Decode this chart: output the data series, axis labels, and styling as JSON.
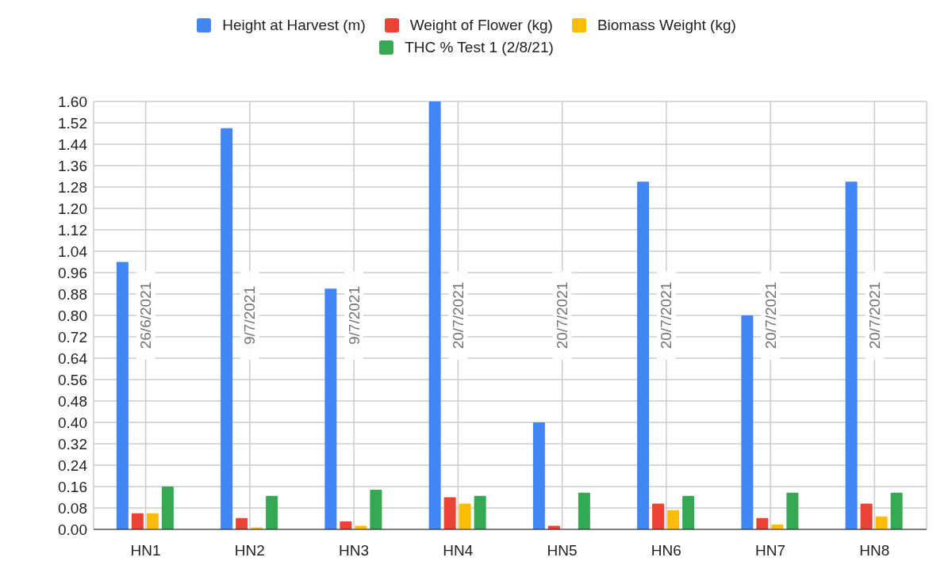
{
  "chart_data": {
    "type": "bar",
    "categories": [
      "HN1",
      "HN2",
      "HN3",
      "HN4",
      "HN5",
      "HN6",
      "HN7",
      "HN8"
    ],
    "series": [
      {
        "name": "Height at Harvest (m)",
        "color": "#4285f4",
        "values": [
          1.0,
          1.5,
          0.9,
          1.6,
          0.4,
          1.3,
          0.8,
          1.3
        ]
      },
      {
        "name": "Weight of Flower (kg)",
        "color": "#ea4335",
        "values": [
          0.06,
          0.042,
          0.03,
          0.12,
          0.013,
          0.096,
          0.042,
          0.096
        ]
      },
      {
        "name": "Biomass Weight (kg)",
        "color": "#fbbc04",
        "values": [
          0.06,
          0.007,
          0.013,
          0.096,
          0,
          0.072,
          0.018,
          0.048
        ]
      },
      {
        "name": "THC % Test 1 (2/8/21)",
        "color": "#34a853",
        "values": [
          0.16,
          0.125,
          0.148,
          0.125,
          0.137,
          0.125,
          0.137,
          0.137
        ]
      }
    ],
    "ylim": [
      0,
      1.6
    ],
    "yticks": [
      {
        "value": 0,
        "label": "0.00"
      },
      0.08,
      0.16,
      0.24,
      0.32,
      {
        "value": 0.4,
        "label": "0.40"
      },
      0.48,
      0.56,
      0.64,
      0.72,
      {
        "value": 0.8,
        "label": "0.80"
      },
      0.88,
      0.96,
      1.04,
      1.12,
      {
        "value": 1.2,
        "label": "1.20"
      },
      1.28,
      1.36,
      1.44,
      1.52,
      {
        "value": 1.6,
        "label": "1.60"
      }
    ],
    "grid": true,
    "legend": "top",
    "annotations": [
      "26/6/2021",
      "9/7/2021",
      "9/7/2021",
      "20/7/2021",
      "20/7/2021",
      "20/7/2021",
      "20/7/2021",
      "20/7/2021"
    ]
  }
}
